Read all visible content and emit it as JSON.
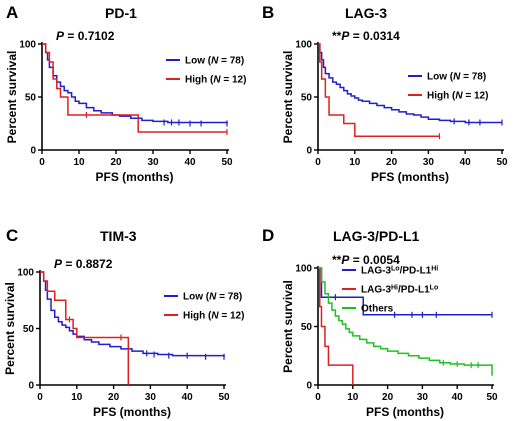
{
  "chart_data": [
    {
      "type": "line",
      "panel": "A",
      "title": "PD-1",
      "p_value": "P = 0.7102",
      "xlabel": "PFS (months)",
      "ylabel": "Percent survival",
      "xlim": [
        0,
        50
      ],
      "ylim": [
        0,
        100
      ],
      "xticks": [
        0,
        10,
        20,
        30,
        40,
        50
      ],
      "yticks": [
        0,
        50,
        100
      ],
      "legend": "right",
      "series": [
        {
          "name": "Low (N = 78)",
          "color": "#1f1fd0",
          "steps": [
            [
              0,
              100
            ],
            [
              1,
              92
            ],
            [
              1.5,
              85
            ],
            [
              2,
              78
            ],
            [
              3,
              70
            ],
            [
              4,
              64
            ],
            [
              5,
              60
            ],
            [
              6,
              56
            ],
            [
              7,
              54
            ],
            [
              8,
              50
            ],
            [
              9,
              46
            ],
            [
              10,
              44
            ],
            [
              12,
              40
            ],
            [
              14,
              37
            ],
            [
              16,
              35
            ],
            [
              19,
              33
            ],
            [
              21,
              32
            ],
            [
              24,
              30
            ],
            [
              27,
              28
            ],
            [
              30,
              27
            ],
            [
              34,
              26
            ],
            [
              50,
              25
            ]
          ],
          "censor": [
            [
              33,
              26
            ],
            [
              35,
              26
            ],
            [
              37,
              26
            ],
            [
              40,
              25
            ],
            [
              43,
              25
            ],
            [
              50,
              25
            ]
          ]
        },
        {
          "name": "High (N = 12)",
          "color": "#e02020",
          "steps": [
            [
              0,
              100
            ],
            [
              1,
              92
            ],
            [
              2,
              83
            ],
            [
              3,
              67
            ],
            [
              4,
              58
            ],
            [
              5,
              50
            ],
            [
              7,
              33
            ],
            [
              26,
              33
            ],
            [
              26,
              17
            ],
            [
              50,
              17
            ]
          ],
          "censor": [
            [
              12,
              33
            ],
            [
              50,
              17
            ]
          ]
        }
      ]
    },
    {
      "type": "line",
      "panel": "B",
      "title": "LAG-3",
      "p_value": "**P = 0.0314",
      "xlabel": "PFS (months)",
      "ylabel": "Percent survival",
      "xlim": [
        0,
        50
      ],
      "ylim": [
        0,
        100
      ],
      "xticks": [
        0,
        10,
        20,
        30,
        40,
        50
      ],
      "yticks": [
        0,
        50,
        100
      ],
      "legend": "right",
      "series": [
        {
          "name": "Low (N = 78)",
          "color": "#1f1fd0",
          "steps": [
            [
              0,
              100
            ],
            [
              0.5,
              92
            ],
            [
              1,
              85
            ],
            [
              1.5,
              78
            ],
            [
              2,
              72
            ],
            [
              3,
              68
            ],
            [
              4,
              64
            ],
            [
              5,
              62
            ],
            [
              6,
              59
            ],
            [
              7,
              56
            ],
            [
              8,
              53
            ],
            [
              9,
              51
            ],
            [
              10,
              49
            ],
            [
              11,
              47
            ],
            [
              12,
              46
            ],
            [
              14,
              44
            ],
            [
              16,
              42
            ],
            [
              18,
              40
            ],
            [
              20,
              38
            ],
            [
              22,
              36
            ],
            [
              24,
              34
            ],
            [
              26,
              33
            ],
            [
              28,
              31
            ],
            [
              30,
              29
            ],
            [
              33,
              28
            ],
            [
              36,
              27
            ],
            [
              40,
              26
            ],
            [
              50,
              26
            ]
          ],
          "censor": [
            [
              37,
              27
            ],
            [
              41,
              26
            ],
            [
              44,
              26
            ],
            [
              50,
              26
            ]
          ]
        },
        {
          "name": "High (N = 12)",
          "color": "#e02020",
          "steps": [
            [
              0,
              100
            ],
            [
              0.5,
              83
            ],
            [
              1,
              67
            ],
            [
              2,
              50
            ],
            [
              3,
              33
            ],
            [
              7,
              33
            ],
            [
              7,
              25
            ],
            [
              10,
              25
            ],
            [
              10,
              13
            ],
            [
              33,
              13
            ]
          ],
          "censor": [
            [
              33,
              13
            ]
          ]
        }
      ]
    },
    {
      "type": "line",
      "panel": "C",
      "title": "TIM-3",
      "p_value": "P = 0.8872",
      "xlabel": "PFS (months)",
      "ylabel": "Percent survival",
      "xlim": [
        0,
        50
      ],
      "ylim": [
        0,
        100
      ],
      "xticks": [
        0,
        10,
        20,
        30,
        40,
        50
      ],
      "yticks": [
        0,
        50,
        100
      ],
      "legend": "right",
      "series": [
        {
          "name": "Low (N = 78)",
          "color": "#1f1fd0",
          "steps": [
            [
              0,
              100
            ],
            [
              1,
              92
            ],
            [
              1.5,
              84
            ],
            [
              2,
              76
            ],
            [
              3,
              66
            ],
            [
              4,
              60
            ],
            [
              5,
              56
            ],
            [
              6,
              53
            ],
            [
              7,
              51
            ],
            [
              8,
              48
            ],
            [
              9,
              45
            ],
            [
              10,
              43
            ],
            [
              12,
              40
            ],
            [
              14,
              38
            ],
            [
              16,
              36
            ],
            [
              19,
              34
            ],
            [
              22,
              32
            ],
            [
              25,
              30
            ],
            [
              28,
              28
            ],
            [
              32,
              27
            ],
            [
              36,
              26
            ],
            [
              50,
              25
            ]
          ],
          "censor": [
            [
              29,
              28
            ],
            [
              31,
              27
            ],
            [
              35,
              26
            ],
            [
              40,
              26
            ],
            [
              45,
              25
            ],
            [
              50,
              25
            ]
          ]
        },
        {
          "name": "High (N = 12)",
          "color": "#e02020",
          "steps": [
            [
              0,
              100
            ],
            [
              1,
              92
            ],
            [
              2,
              83
            ],
            [
              4,
              75
            ],
            [
              7,
              75
            ],
            [
              7,
              58
            ],
            [
              9,
              50
            ],
            [
              10,
              42
            ],
            [
              24,
              42
            ],
            [
              24,
              0
            ]
          ],
          "censor": [
            [
              8,
              58
            ],
            [
              22,
              42
            ]
          ]
        }
      ]
    },
    {
      "type": "line",
      "panel": "D",
      "title": "LAG-3/PD-L1",
      "p_value": "**P = 0.0054",
      "xlabel": "PFS (months)",
      "ylabel": "Percent survival",
      "xlim": [
        0,
        50
      ],
      "ylim": [
        0,
        100
      ],
      "xticks": [
        0,
        10,
        20,
        30,
        40,
        50
      ],
      "yticks": [
        0,
        50,
        100
      ],
      "legend": "right",
      "series": [
        {
          "name": "LAG-3Lo/PD-L1Hi",
          "name_parts": [
            "LAG-3",
            "Lo",
            "/PD-L1",
            "Hi"
          ],
          "color": "#1f1fd0",
          "steps": [
            [
              0,
              100
            ],
            [
              1,
              75
            ],
            [
              13,
              75
            ],
            [
              13,
              60
            ],
            [
              50,
              60
            ]
          ],
          "censor": [
            [
              5,
              75
            ],
            [
              22,
              60
            ],
            [
              27,
              60
            ],
            [
              30,
              60
            ],
            [
              34,
              60
            ],
            [
              50,
              60
            ]
          ]
        },
        {
          "name": "LAG-3Hi/PD-L1Lo",
          "name_parts": [
            "LAG-3",
            "Hi",
            "/PD-L1",
            "Lo"
          ],
          "color": "#e02020",
          "steps": [
            [
              0,
              100
            ],
            [
              0.5,
              67
            ],
            [
              1,
              50
            ],
            [
              2,
              33
            ],
            [
              3,
              17
            ],
            [
              10,
              17
            ],
            [
              10,
              0
            ]
          ],
          "censor": []
        },
        {
          "name": "Others",
          "color": "#20c020",
          "steps": [
            [
              0,
              100
            ],
            [
              1,
              88
            ],
            [
              2,
              78
            ],
            [
              3,
              70
            ],
            [
              4,
              64
            ],
            [
              5,
              59
            ],
            [
              6,
              55
            ],
            [
              7,
              52
            ],
            [
              8,
              48
            ],
            [
              9,
              45
            ],
            [
              10,
              42
            ],
            [
              12,
              39
            ],
            [
              14,
              36
            ],
            [
              16,
              33
            ],
            [
              18,
              31
            ],
            [
              20,
              29
            ],
            [
              23,
              27
            ],
            [
              26,
              25
            ],
            [
              29,
              23
            ],
            [
              32,
              21
            ],
            [
              35,
              19
            ],
            [
              38,
              18
            ],
            [
              42,
              17
            ],
            [
              49,
              17
            ],
            [
              50,
              8
            ]
          ],
          "censor": [
            [
              36,
              19
            ],
            [
              40,
              18
            ],
            [
              44,
              17
            ],
            [
              46,
              17
            ]
          ]
        }
      ]
    }
  ]
}
